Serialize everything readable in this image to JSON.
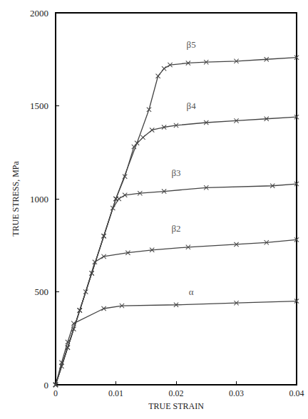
{
  "chart_data": {
    "type": "line",
    "x_label": "TRUE STRAIN",
    "y_label": "TRUE STRESS, MPa",
    "xlim": [
      0,
      0.04
    ],
    "xticks": [
      0,
      0.01,
      0.02,
      0.03,
      0.04
    ],
    "ylim": [
      0,
      2000
    ],
    "yticks": [
      0,
      500,
      1000,
      1500,
      2000
    ],
    "grid": false,
    "marker": "x",
    "color": "#444444",
    "series": [
      {
        "name": "α",
        "x": [
          0,
          0.001,
          0.002,
          0.003,
          0.008,
          0.011,
          0.02,
          0.03,
          0.04
        ],
        "values": [
          0,
          120,
          230,
          330,
          410,
          425,
          430,
          440,
          450
        ]
      },
      {
        "name": "β2",
        "x": [
          0,
          0.001,
          0.002,
          0.003,
          0.004,
          0.005,
          0.0065,
          0.008,
          0.012,
          0.016,
          0.022,
          0.03,
          0.035,
          0.04
        ],
        "values": [
          0,
          100,
          200,
          300,
          400,
          500,
          660,
          690,
          710,
          725,
          740,
          755,
          765,
          780
        ]
      },
      {
        "name": "β3",
        "x": [
          0,
          0.002,
          0.004,
          0.006,
          0.008,
          0.0095,
          0.0105,
          0.0115,
          0.014,
          0.018,
          0.025,
          0.036,
          0.04
        ],
        "values": [
          0,
          200,
          400,
          600,
          800,
          950,
          1000,
          1020,
          1030,
          1040,
          1060,
          1070,
          1080
        ]
      },
      {
        "name": "β4",
        "x": [
          0,
          0.004,
          0.008,
          0.01,
          0.0115,
          0.013,
          0.0145,
          0.016,
          0.018,
          0.02,
          0.025,
          0.03,
          0.035,
          0.04
        ],
        "values": [
          0,
          400,
          800,
          1000,
          1120,
          1280,
          1330,
          1370,
          1385,
          1395,
          1410,
          1420,
          1430,
          1440
        ]
      },
      {
        "name": "β5",
        "x": [
          0,
          0.006,
          0.01,
          0.0135,
          0.0155,
          0.017,
          0.018,
          0.019,
          0.022,
          0.025,
          0.03,
          0.035,
          0.04
        ],
        "values": [
          0,
          600,
          1000,
          1300,
          1480,
          1660,
          1700,
          1720,
          1730,
          1735,
          1740,
          1750,
          1760
        ]
      }
    ],
    "annotations": [
      {
        "text": "β5",
        "x": 0.0225,
        "y": 1830
      },
      {
        "text": "β4",
        "x": 0.0225,
        "y": 1500
      },
      {
        "text": "β3",
        "x": 0.02,
        "y": 1140
      },
      {
        "text": "β2",
        "x": 0.02,
        "y": 840
      },
      {
        "text": "α",
        "x": 0.0225,
        "y": 500
      }
    ]
  }
}
